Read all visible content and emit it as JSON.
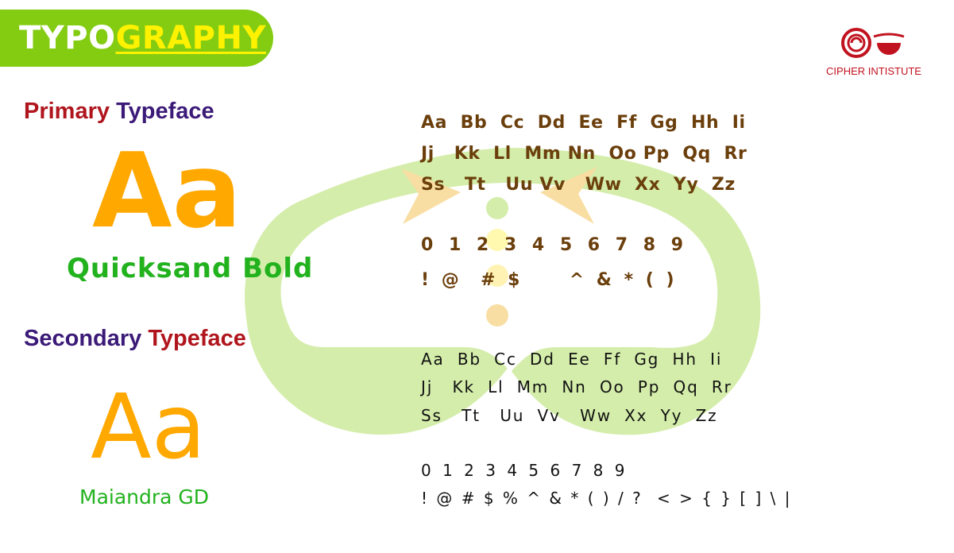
{
  "header": {
    "title_part1": "TYPO",
    "title_part2": "GRAPHY"
  },
  "logo": {
    "text": "CIPHER INTISTUTE"
  },
  "primary": {
    "heading_word1": "Primary",
    "heading_word2": "Typeface",
    "sample": "Aa",
    "font_name": "Quicksand Bold",
    "glyph_lines": [
      "Aa  Bb  Cc  Dd  Ee  Ff  Gg  Hh  Ii",
      "Jj   Kk  Ll  Mm Nn  Oo Pp  Qq  Rr",
      "Ss   Tt   Uu Vv   Ww  Xx  Yy  Zz",
      "0 1 2 3 4 5 6 7 8 9",
      "! @  # $     ^ & * ( )"
    ]
  },
  "secondary": {
    "heading_word1": "Secondary",
    "heading_word2": "Typeface",
    "sample": "Aa",
    "font_name": "Maiandra GD",
    "glyph_lines": [
      "Aa  Bb  Cc  Dd  Ee  Ff  Gg  Hh  Ii",
      "Jj   Kk  Ll  Mm  Nn  Oo  Pp  Qq  Rr",
      "Ss   Tt   Uu  Vv   Ww  Xx  Yy  Zz",
      "0 1 2 3 4 5 6 7 8 9",
      "! @ # $ % ^ & * ( ) / ?  < > { } [ ] \\ |"
    ]
  },
  "colors": {
    "title_bar": "#84cc12",
    "title_highlight": "#fff200",
    "primary_heading_word1": "#b0151d",
    "primary_heading_word2": "#3b1a78",
    "secondary_heading_word1": "#3b1a78",
    "secondary_heading_word2": "#b0151d",
    "sample_orange": "#ffa800",
    "font_name_green": "#22b21e",
    "primary_glyphs": "#6b3f0c",
    "secondary_glyphs": "#111111",
    "logo_red": "#c1121f",
    "emblem_green": "#d4edaa"
  }
}
